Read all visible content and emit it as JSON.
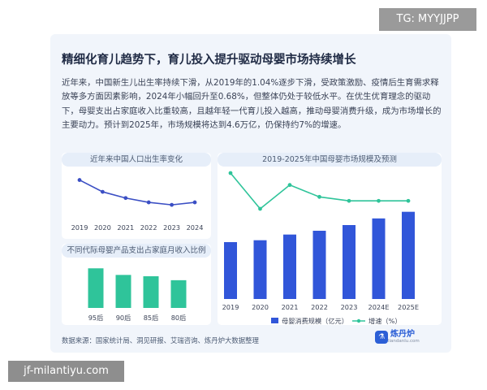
{
  "watermark_top": "TG: MYYJJPP",
  "watermark_bottom": "jf-milantiyu.com",
  "title": "精细化育儿趋势下，育儿投入提升驱动母婴市场持续增长",
  "paragraph": "近年来，中国新生儿出生率持续下滑，从2019年的1.04%逐步下滑，受政策激励、疫情后生育需求释放等多方面因素影响，2024年小幅回升至0.68%，但整体仍处于较低水平。在优生优育理念的驱动下，母婴支出占家庭收入比重较高，且越年轻一代育儿投入越高，推动母婴消费升级，成为市场增长的主要动力。预计到2025年，市场规模将达到4.6万亿，仍保持约7%的增速。",
  "footer": "数据来源：国家统计局、洞见研报、艾瑞咨询、炼丹炉大数据整理",
  "logo": {
    "text": "炼丹炉",
    "sub": "liandanlu.com"
  },
  "colors": {
    "line": "#3b4fc4",
    "teal": "#2fc49a",
    "blue": "#3156d9"
  },
  "chart_data": [
    {
      "type": "line",
      "title": "近年来中国人口出生率变化",
      "categories": [
        "2019",
        "2020",
        "2021",
        "2022",
        "2023",
        "2024"
      ],
      "values": [
        1.04,
        0.85,
        0.75,
        0.68,
        0.64,
        0.68
      ],
      "grid": false
    },
    {
      "type": "bar",
      "title": "不同代际母婴产品支出占家庭月收入比例",
      "categories": [
        "95后",
        "90后",
        "85后",
        "80后"
      ],
      "values": [
        30,
        25,
        24,
        21
      ],
      "grid": false
    },
    {
      "type": "bar",
      "title": "2019-2025年中国母婴市场规模及预测",
      "categories": [
        "2019",
        "2020",
        "2021",
        "2022",
        "2023",
        "2024E",
        "2025E"
      ],
      "series": [
        {
          "name": "母婴消费规模（亿元）",
          "type": "bar",
          "values": [
            30000,
            31000,
            34000,
            36000,
            39000,
            42500,
            46000
          ]
        },
        {
          "name": "增速（%）",
          "type": "line",
          "values": [
            14,
            5,
            11,
            8,
            7,
            7,
            7
          ]
        }
      ],
      "legend": "bottom",
      "grid": false
    }
  ]
}
